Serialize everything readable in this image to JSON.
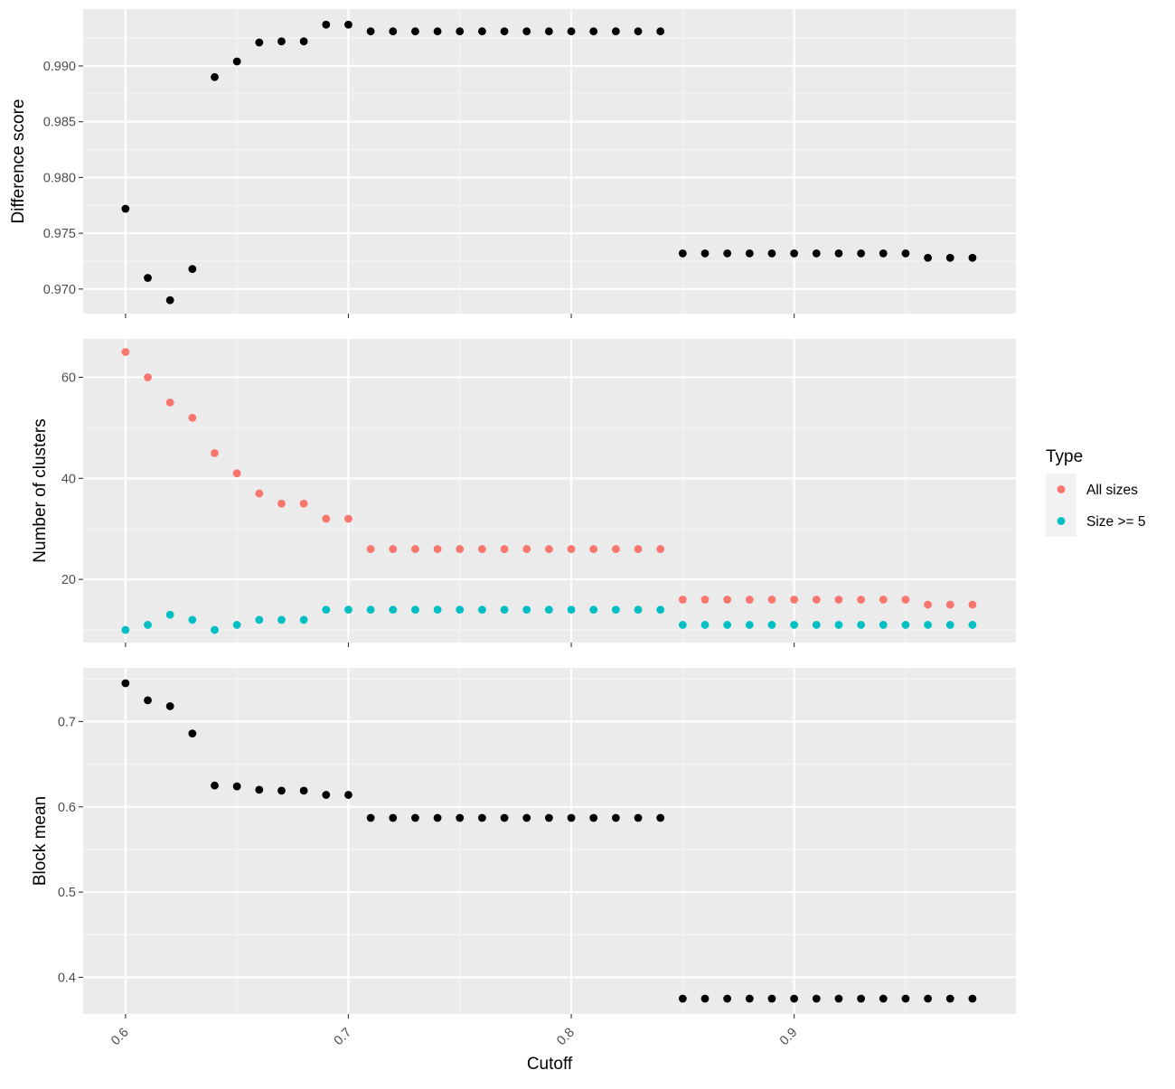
{
  "chart_data": [
    {
      "type": "scatter",
      "ylabel": "Difference score",
      "xlim": [
        0.581,
        0.9995
      ],
      "ylim": [
        0.9678,
        0.9951
      ],
      "y_ticks": [
        0.97,
        0.975,
        0.98,
        0.985,
        0.99
      ],
      "y_tick_labels": [
        "0.970",
        "0.975",
        "0.980",
        "0.985",
        "0.990"
      ],
      "grid": true,
      "series": [
        {
          "color": "#000000",
          "points": [
            [
              0.6,
              0.9772
            ],
            [
              0.61,
              0.971
            ],
            [
              0.62,
              0.969
            ],
            [
              0.63,
              0.9718
            ],
            [
              0.64,
              0.989
            ],
            [
              0.65,
              0.9904
            ],
            [
              0.66,
              0.9921
            ],
            [
              0.67,
              0.9922
            ],
            [
              0.68,
              0.9922
            ],
            [
              0.69,
              0.9937
            ],
            [
              0.7,
              0.9937
            ],
            [
              0.71,
              0.9931
            ],
            [
              0.72,
              0.9931
            ],
            [
              0.73,
              0.9931
            ],
            [
              0.74,
              0.9931
            ],
            [
              0.75,
              0.9931
            ],
            [
              0.76,
              0.9931
            ],
            [
              0.77,
              0.9931
            ],
            [
              0.78,
              0.9931
            ],
            [
              0.79,
              0.9931
            ],
            [
              0.8,
              0.9931
            ],
            [
              0.81,
              0.9931
            ],
            [
              0.82,
              0.9931
            ],
            [
              0.83,
              0.9931
            ],
            [
              0.84,
              0.9931
            ],
            [
              0.85,
              0.9732
            ],
            [
              0.86,
              0.9732
            ],
            [
              0.87,
              0.9732
            ],
            [
              0.88,
              0.9732
            ],
            [
              0.89,
              0.9732
            ],
            [
              0.9,
              0.9732
            ],
            [
              0.91,
              0.9732
            ],
            [
              0.92,
              0.9732
            ],
            [
              0.93,
              0.9732
            ],
            [
              0.94,
              0.9732
            ],
            [
              0.95,
              0.9732
            ],
            [
              0.96,
              0.9728
            ],
            [
              0.97,
              0.9728
            ],
            [
              0.98,
              0.9728
            ]
          ]
        }
      ]
    },
    {
      "type": "scatter",
      "ylabel": "Number of clusters",
      "xlim": [
        0.581,
        0.9995
      ],
      "ylim": [
        7.5,
        67.6
      ],
      "y_ticks": [
        20,
        40,
        60
      ],
      "y_tick_labels": [
        "20",
        "40",
        "60"
      ],
      "grid": true,
      "legend": {
        "title": "Type",
        "position": "right"
      },
      "series": [
        {
          "name": "All sizes",
          "color": "#F8766D",
          "points": [
            [
              0.6,
              65
            ],
            [
              0.61,
              60
            ],
            [
              0.62,
              55
            ],
            [
              0.63,
              52
            ],
            [
              0.64,
              45
            ],
            [
              0.65,
              41
            ],
            [
              0.66,
              37
            ],
            [
              0.67,
              35
            ],
            [
              0.68,
              35
            ],
            [
              0.69,
              32
            ],
            [
              0.7,
              32
            ],
            [
              0.71,
              26
            ],
            [
              0.72,
              26
            ],
            [
              0.73,
              26
            ],
            [
              0.74,
              26
            ],
            [
              0.75,
              26
            ],
            [
              0.76,
              26
            ],
            [
              0.77,
              26
            ],
            [
              0.78,
              26
            ],
            [
              0.79,
              26
            ],
            [
              0.8,
              26
            ],
            [
              0.81,
              26
            ],
            [
              0.82,
              26
            ],
            [
              0.83,
              26
            ],
            [
              0.84,
              26
            ],
            [
              0.85,
              16
            ],
            [
              0.86,
              16
            ],
            [
              0.87,
              16
            ],
            [
              0.88,
              16
            ],
            [
              0.89,
              16
            ],
            [
              0.9,
              16
            ],
            [
              0.91,
              16
            ],
            [
              0.92,
              16
            ],
            [
              0.93,
              16
            ],
            [
              0.94,
              16
            ],
            [
              0.95,
              16
            ],
            [
              0.96,
              15
            ],
            [
              0.97,
              15
            ],
            [
              0.98,
              15
            ]
          ]
        },
        {
          "name": "Size >= 5",
          "color": "#00BFC4",
          "points": [
            [
              0.6,
              10
            ],
            [
              0.61,
              11
            ],
            [
              0.62,
              13
            ],
            [
              0.63,
              12
            ],
            [
              0.64,
              10
            ],
            [
              0.65,
              11
            ],
            [
              0.66,
              12
            ],
            [
              0.67,
              12
            ],
            [
              0.68,
              12
            ],
            [
              0.69,
              14
            ],
            [
              0.7,
              14
            ],
            [
              0.71,
              14
            ],
            [
              0.72,
              14
            ],
            [
              0.73,
              14
            ],
            [
              0.74,
              14
            ],
            [
              0.75,
              14
            ],
            [
              0.76,
              14
            ],
            [
              0.77,
              14
            ],
            [
              0.78,
              14
            ],
            [
              0.79,
              14
            ],
            [
              0.8,
              14
            ],
            [
              0.81,
              14
            ],
            [
              0.82,
              14
            ],
            [
              0.83,
              14
            ],
            [
              0.84,
              14
            ],
            [
              0.85,
              11
            ],
            [
              0.86,
              11
            ],
            [
              0.87,
              11
            ],
            [
              0.88,
              11
            ],
            [
              0.89,
              11
            ],
            [
              0.9,
              11
            ],
            [
              0.91,
              11
            ],
            [
              0.92,
              11
            ],
            [
              0.93,
              11
            ],
            [
              0.94,
              11
            ],
            [
              0.95,
              11
            ],
            [
              0.96,
              11
            ],
            [
              0.97,
              11
            ],
            [
              0.98,
              11
            ]
          ]
        }
      ]
    },
    {
      "type": "scatter",
      "xlabel": "Cutoff",
      "ylabel": "Block mean",
      "xlim": [
        0.581,
        0.9995
      ],
      "ylim": [
        0.357,
        0.763
      ],
      "x_ticks": [
        0.6,
        0.7,
        0.8,
        0.9
      ],
      "x_tick_labels": [
        "0.6",
        "0.7",
        "0.8",
        "0.9"
      ],
      "y_ticks": [
        0.4,
        0.5,
        0.6,
        0.7
      ],
      "y_tick_labels": [
        "0.4",
        "0.5",
        "0.6",
        "0.7"
      ],
      "grid": true,
      "series": [
        {
          "color": "#000000",
          "points": [
            [
              0.6,
              0.745
            ],
            [
              0.61,
              0.725
            ],
            [
              0.62,
              0.718
            ],
            [
              0.63,
              0.686
            ],
            [
              0.64,
              0.625
            ],
            [
              0.65,
              0.624
            ],
            [
              0.66,
              0.62
            ],
            [
              0.67,
              0.619
            ],
            [
              0.68,
              0.619
            ],
            [
              0.69,
              0.614
            ],
            [
              0.7,
              0.614
            ],
            [
              0.71,
              0.587
            ],
            [
              0.72,
              0.587
            ],
            [
              0.73,
              0.587
            ],
            [
              0.74,
              0.587
            ],
            [
              0.75,
              0.587
            ],
            [
              0.76,
              0.587
            ],
            [
              0.77,
              0.587
            ],
            [
              0.78,
              0.587
            ],
            [
              0.79,
              0.587
            ],
            [
              0.8,
              0.587
            ],
            [
              0.81,
              0.587
            ],
            [
              0.82,
              0.587
            ],
            [
              0.83,
              0.587
            ],
            [
              0.84,
              0.587
            ],
            [
              0.85,
              0.375
            ],
            [
              0.86,
              0.375
            ],
            [
              0.87,
              0.375
            ],
            [
              0.88,
              0.375
            ],
            [
              0.89,
              0.375
            ],
            [
              0.9,
              0.375
            ],
            [
              0.91,
              0.375
            ],
            [
              0.92,
              0.375
            ],
            [
              0.93,
              0.375
            ],
            [
              0.94,
              0.375
            ],
            [
              0.95,
              0.375
            ],
            [
              0.96,
              0.375
            ],
            [
              0.97,
              0.375
            ],
            [
              0.98,
              0.375
            ]
          ]
        }
      ]
    }
  ]
}
